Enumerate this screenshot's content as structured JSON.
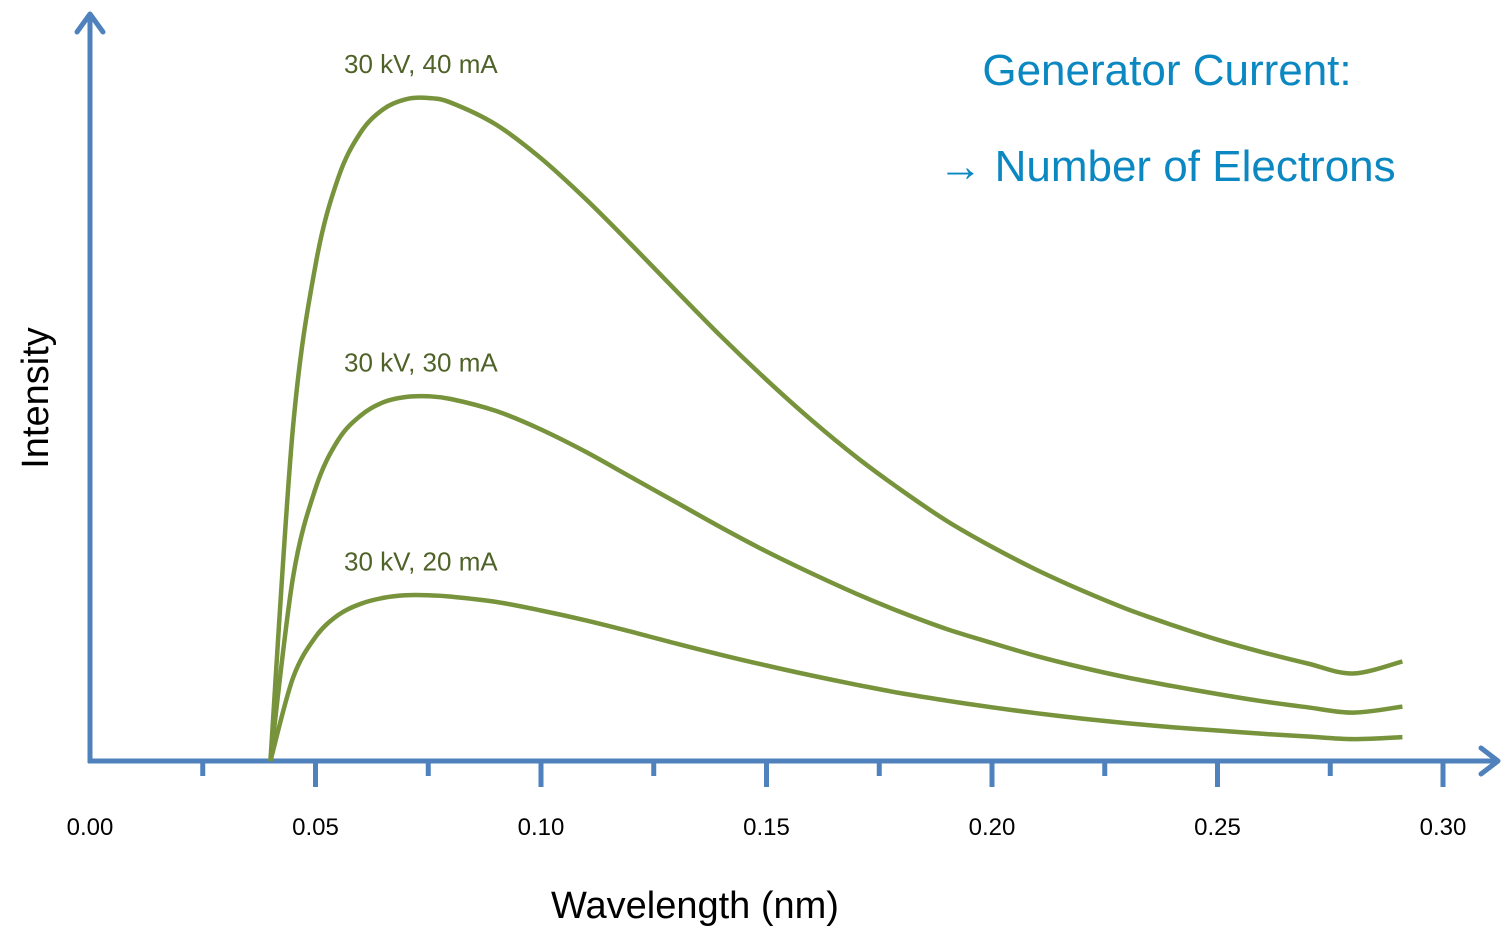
{
  "chart_data": {
    "type": "line",
    "xlabel": "Wavelength (nm)",
    "ylabel": "Intensity",
    "xlim": [
      0.0,
      0.3
    ],
    "ylim": [
      0,
      100
    ],
    "xticks": [
      "0.00",
      "0.05",
      "0.10",
      "0.15",
      "0.20",
      "0.25",
      "0.30"
    ],
    "yticks_shown": false,
    "grid": false,
    "series": [
      {
        "name": "30 kV, 40 mA",
        "x": [
          0.04,
          0.045,
          0.05,
          0.055,
          0.06,
          0.065,
          0.07,
          0.075,
          0.08,
          0.09,
          0.1,
          0.11,
          0.12,
          0.13,
          0.14,
          0.15,
          0.16,
          0.17,
          0.18,
          0.19,
          0.2,
          0.21,
          0.22,
          0.23,
          0.24,
          0.25,
          0.26,
          0.27,
          0.28,
          0.291
        ],
        "y": [
          0.0,
          50.2,
          74.8,
          87.9,
          94.8,
          98.3,
          99.8,
          100.0,
          99.3,
          96.0,
          90.9,
          84.7,
          77.9,
          70.9,
          64.0,
          57.5,
          51.4,
          45.8,
          40.8,
          36.2,
          32.3,
          28.8,
          25.7,
          22.9,
          20.5,
          18.3,
          16.4,
          14.7,
          13.2,
          15.0
        ]
      },
      {
        "name": "30 kV, 30 mA",
        "x": [
          0.04,
          0.045,
          0.05,
          0.055,
          0.06,
          0.065,
          0.07,
          0.075,
          0.08,
          0.09,
          0.1,
          0.11,
          0.12,
          0.13,
          0.14,
          0.15,
          0.16,
          0.17,
          0.18,
          0.19,
          0.2,
          0.21,
          0.22,
          0.23,
          0.24,
          0.25,
          0.26,
          0.27,
          0.28,
          0.291
        ],
        "y": [
          0.0,
          27.6,
          41.1,
          48.4,
          52.1,
          54.1,
          54.9,
          55.0,
          54.6,
          52.8,
          50.0,
          46.6,
          42.8,
          39.0,
          35.2,
          31.6,
          28.3,
          25.2,
          22.4,
          19.9,
          17.8,
          15.8,
          14.1,
          12.6,
          11.3,
          10.1,
          9.0,
          8.1,
          7.3,
          8.2
        ]
      },
      {
        "name": "30 kV, 20 mA",
        "x": [
          0.04,
          0.045,
          0.05,
          0.055,
          0.06,
          0.065,
          0.07,
          0.075,
          0.08,
          0.09,
          0.1,
          0.11,
          0.12,
          0.13,
          0.14,
          0.15,
          0.16,
          0.17,
          0.18,
          0.19,
          0.2,
          0.21,
          0.22,
          0.23,
          0.24,
          0.25,
          0.26,
          0.27,
          0.28,
          0.291
        ],
        "y": [
          0.0,
          12.5,
          18.7,
          22.0,
          23.7,
          24.6,
          25.0,
          25.0,
          24.8,
          24.0,
          22.7,
          21.2,
          19.5,
          17.7,
          16.0,
          14.4,
          12.9,
          11.5,
          10.2,
          9.1,
          8.1,
          7.2,
          6.4,
          5.7,
          5.1,
          4.6,
          4.1,
          3.7,
          3.3,
          3.6
        ]
      }
    ],
    "annotation": {
      "line1": "Generator Current:",
      "line2": "→ Number of Electrons"
    },
    "colors": {
      "axis": "#4f81bd",
      "curve": "#77933c",
      "series_label": "#4f6228",
      "annotation": "#0b87c2"
    }
  }
}
